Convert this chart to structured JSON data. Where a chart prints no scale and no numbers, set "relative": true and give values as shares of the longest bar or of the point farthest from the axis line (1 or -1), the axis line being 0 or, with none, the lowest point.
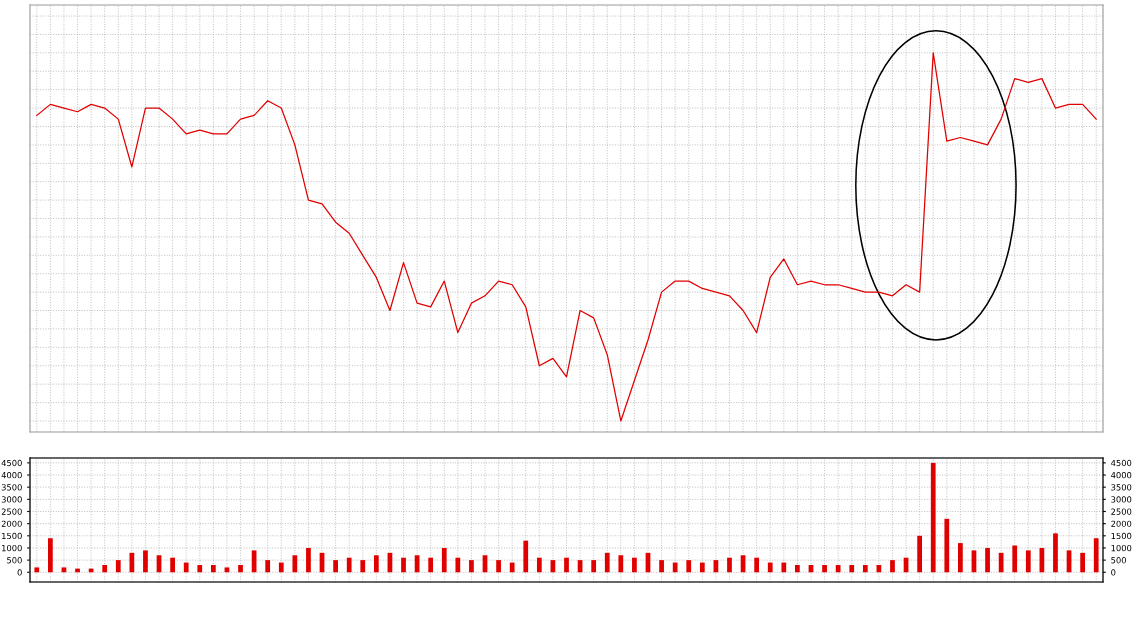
{
  "chart_data": [
    {
      "type": "line",
      "relative": true,
      "color": "#e00000",
      "grid": true,
      "tick_labels": false,
      "categories": [
        null,
        null,
        null,
        null,
        null,
        null,
        null,
        null,
        null,
        null,
        null,
        null,
        null,
        null,
        null,
        null,
        null,
        null,
        null,
        null,
        null,
        null,
        null,
        null,
        null,
        null,
        null,
        null,
        null,
        null,
        null,
        null,
        null,
        null,
        null,
        null,
        null,
        null,
        null,
        null,
        null,
        null,
        null,
        null,
        null,
        null,
        null,
        null,
        null,
        null,
        null,
        null,
        null,
        null,
        null,
        null,
        null,
        null,
        null,
        null,
        null,
        null,
        null,
        null,
        null,
        null,
        null,
        null,
        null,
        null,
        null,
        null,
        null,
        null,
        null,
        null,
        null,
        null,
        null
      ],
      "values": [
        0.83,
        0.86,
        0.85,
        0.84,
        0.86,
        0.85,
        0.82,
        0.69,
        0.85,
        0.85,
        0.82,
        0.78,
        0.79,
        0.78,
        0.78,
        0.82,
        0.83,
        0.87,
        0.85,
        0.75,
        0.6,
        0.59,
        0.54,
        0.51,
        0.45,
        0.39,
        0.3,
        0.43,
        0.32,
        0.31,
        0.38,
        0.24,
        0.32,
        0.34,
        0.38,
        0.37,
        0.31,
        0.15,
        0.17,
        0.12,
        0.3,
        0.28,
        0.18,
        0,
        0.11,
        0.22,
        0.35,
        0.38,
        0.38,
        0.36,
        0.35,
        0.34,
        0.3,
        0.24,
        0.39,
        0.44,
        0.37,
        0.38,
        0.37,
        0.37,
        0.36,
        0.35,
        0.35,
        0.34,
        0.37,
        0.35,
        1,
        0.76,
        0.77,
        0.76,
        0.75,
        0.82,
        0.93,
        0.92,
        0.93,
        0.85,
        0.86,
        0.86,
        0.82
      ]
    },
    {
      "type": "bar",
      "color": "#e00000",
      "grid": true,
      "tick_labels": "y",
      "categories": [
        null,
        null,
        null,
        null,
        null,
        null,
        null,
        null,
        null,
        null,
        null,
        null,
        null,
        null,
        null,
        null,
        null,
        null,
        null,
        null,
        null,
        null,
        null,
        null,
        null,
        null,
        null,
        null,
        null,
        null,
        null,
        null,
        null,
        null,
        null,
        null,
        null,
        null,
        null,
        null,
        null,
        null,
        null,
        null,
        null,
        null,
        null,
        null,
        null,
        null,
        null,
        null,
        null,
        null,
        null,
        null,
        null,
        null,
        null,
        null,
        null,
        null,
        null,
        null,
        null,
        null,
        null,
        null,
        null,
        null,
        null,
        null,
        null,
        null,
        null,
        null,
        null,
        null,
        null
      ],
      "values": [
        200,
        1400,
        200,
        150,
        150,
        300,
        500,
        800,
        900,
        700,
        600,
        400,
        300,
        300,
        200,
        300,
        900,
        500,
        400,
        700,
        1000,
        800,
        500,
        600,
        500,
        700,
        800,
        600,
        700,
        600,
        1000,
        600,
        500,
        700,
        500,
        400,
        1300,
        600,
        500,
        600,
        500,
        500,
        800,
        700,
        600,
        800,
        500,
        400,
        500,
        400,
        500,
        600,
        700,
        600,
        400,
        400,
        300,
        300,
        300,
        300,
        300,
        300,
        300,
        500,
        600,
        1500,
        4500,
        2200,
        1200,
        900,
        1000,
        800,
        1100,
        900,
        1000,
        1600,
        900,
        800,
        1400
      ],
      "ylim": [
        -400,
        4700
      ],
      "yticks": [
        0,
        500,
        1000,
        1500,
        2000,
        2500,
        3000,
        3500,
        4000,
        4500
      ],
      "y2lim": [
        -400,
        4700
      ],
      "y2ticks": [
        0,
        500,
        1000,
        1500,
        2000,
        2500,
        3000,
        3500,
        4000,
        4500
      ]
    }
  ]
}
